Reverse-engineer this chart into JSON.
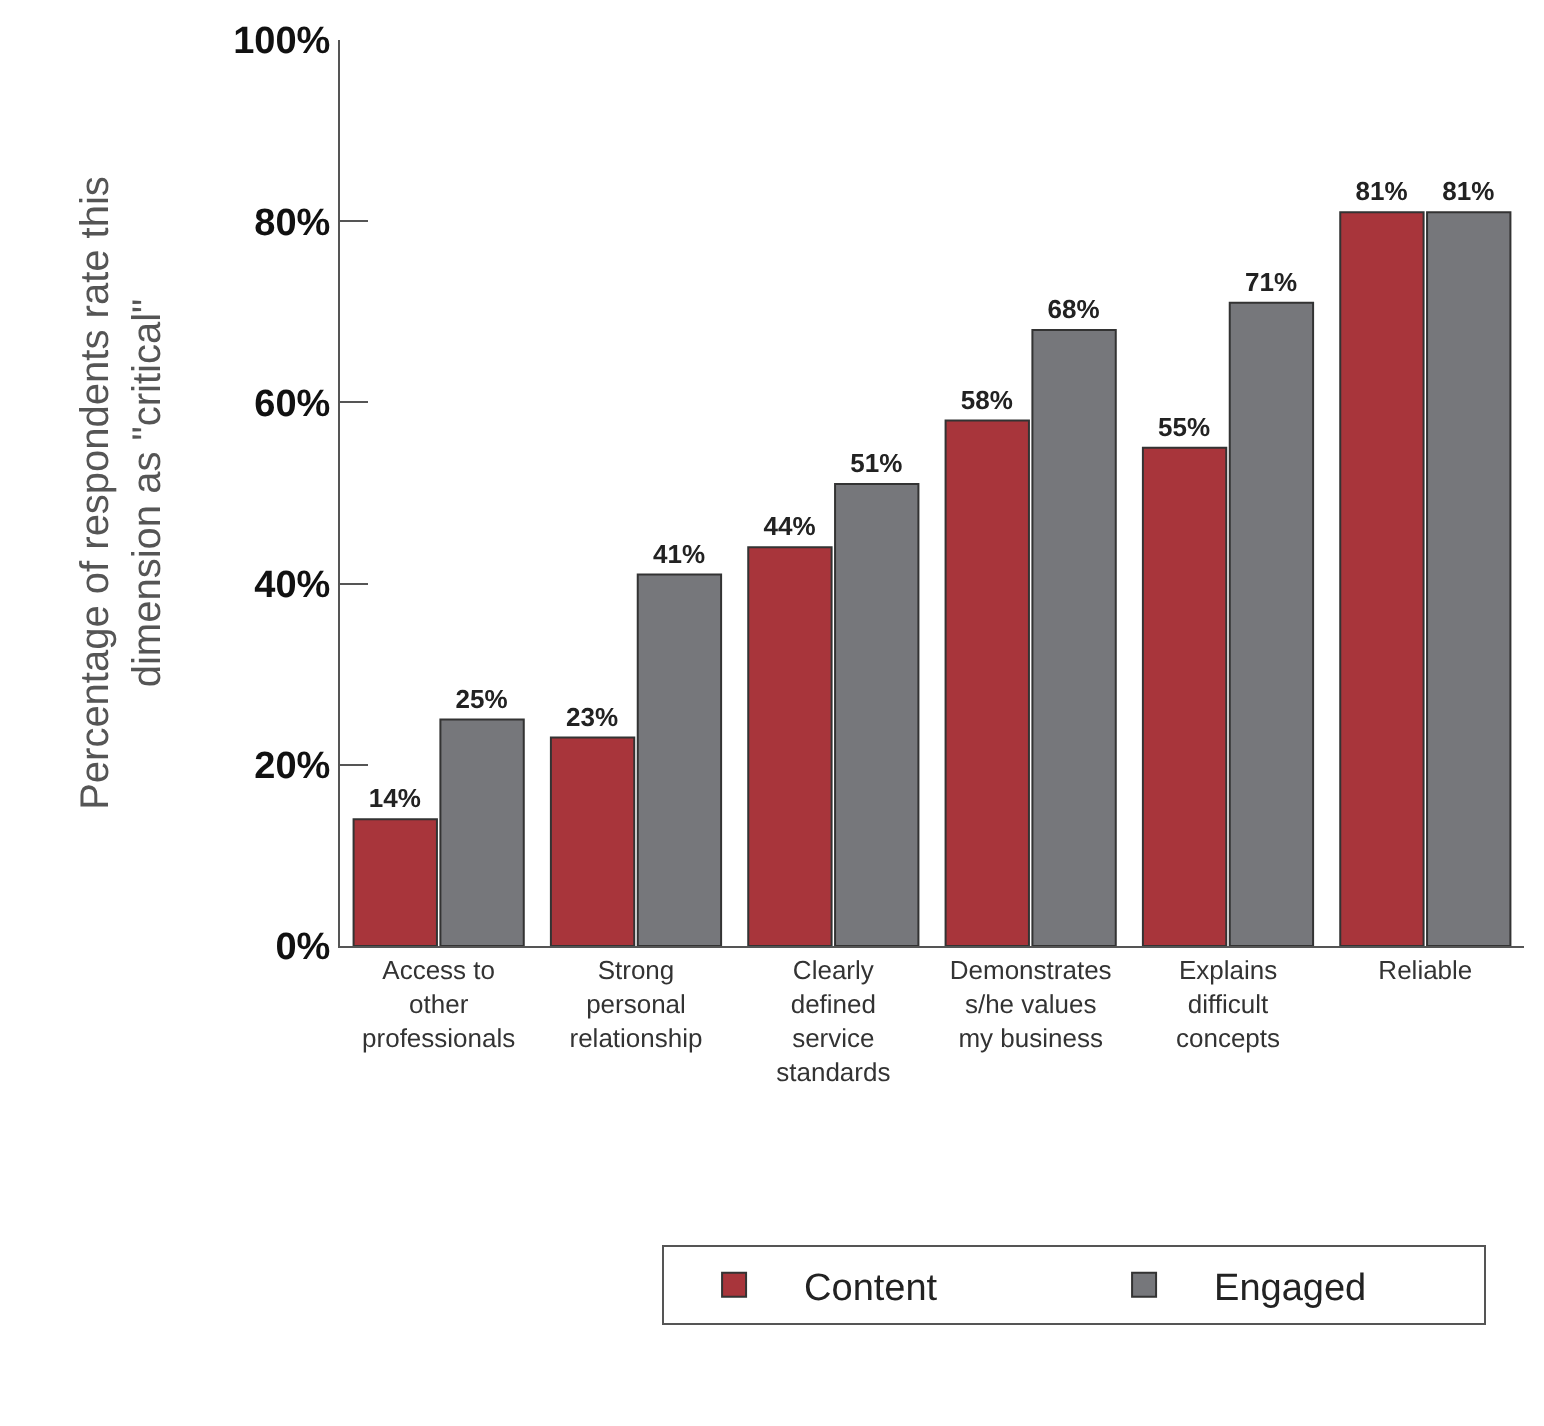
{
  "chart_data": {
    "type": "bar",
    "ylabel": "Percentage of respondents rate this dimension as \"critical\"",
    "categories": [
      "Access to other professionals",
      "Strong personal relationship",
      "Clearly defined service standards",
      "Demonstrates s/he values my business",
      "Explains difficult concepts",
      "Reliable"
    ],
    "series": [
      {
        "name": "Content",
        "color": "#a8353b",
        "values": [
          14,
          23,
          44,
          58,
          55,
          81
        ],
        "value_labels": [
          "14%",
          "23%",
          "44%",
          "58%",
          "55%",
          "81%"
        ]
      },
      {
        "name": "Engaged",
        "color": "#76777b",
        "values": [
          25,
          41,
          51,
          68,
          71,
          81
        ],
        "value_labels": [
          "25%",
          "41%",
          "51%",
          "68%",
          "71%",
          "81%"
        ]
      }
    ],
    "ylim": [
      0,
      100
    ],
    "yticks": [
      {
        "value": 0,
        "label": "0%"
      },
      {
        "value": 20,
        "label": "20%"
      },
      {
        "value": 40,
        "label": "40%"
      },
      {
        "value": 60,
        "label": "60%"
      },
      {
        "value": 80,
        "label": "80%"
      },
      {
        "value": 100,
        "label": "100%"
      }
    ],
    "legend": "bottom"
  }
}
